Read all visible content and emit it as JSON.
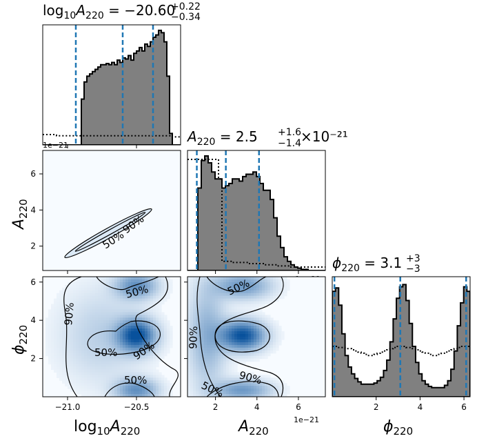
{
  "chart_data": {
    "type": "corner",
    "colors": {
      "hist_fill": "#808080",
      "hist_edge": "#000000",
      "quantile_line": "#1f77b4",
      "prior_line": "#000000",
      "density_cmap_low": "#f7fbff",
      "density_cmap_high": "#08519c",
      "contour": "#000000",
      "frame": "#000000"
    },
    "parameters": [
      {
        "key": "log10A",
        "label": "log₁₀A₂₂₀",
        "title": "log₁₀A₂₂₀ = −20.60⁺⁰·²²₋₀.₃₄"
      },
      {
        "key": "A",
        "label": "A₂₂₀",
        "title": "A₂₂₀ = 2.5⁺¹·⁶₋₁.₄ × 10⁻²¹"
      },
      {
        "key": "phi",
        "label": "ϕ₂₂₀",
        "title": "ϕ₂₂₀ = 3.1⁺³₋₃"
      }
    ],
    "titles": {
      "log10A": {
        "base": "log",
        "sub1": "10",
        "var": "A",
        "sub2": "220",
        "eq": " = −20.60",
        "up": "+0.22",
        "down": "−0.34",
        "tail": ""
      },
      "A": {
        "base": "",
        "sub1": "",
        "var": "A",
        "sub2": "220",
        "eq": " = 2.5",
        "up": "+1.6",
        "down": "−1.4",
        "tail": "×10⁻²¹"
      },
      "phi": {
        "base": "",
        "sub1": "",
        "var": "ϕ",
        "sub2": "220",
        "eq": " = 3.1",
        "up": "+3",
        "down": "−3",
        "tail": ""
      }
    },
    "axis_labels": {
      "log10A": {
        "base": "log",
        "sub1": "10",
        "var": "A",
        "sub2": "220"
      },
      "A": {
        "var": "A",
        "sub2": "220"
      },
      "phi": {
        "var": "ϕ",
        "sub2": "220"
      }
    },
    "ranges": {
      "log10A": [
        -21.18,
        -20.18
      ],
      "A": [
        0.65,
        7.3
      ],
      "phi": [
        0.0,
        6.28
      ]
    },
    "ticks": {
      "log10A": [
        -21.0,
        -20.5
      ],
      "log10A_labels": [
        "−21.0",
        "−20.5"
      ],
      "A": [
        2,
        4,
        6
      ],
      "A_labels": [
        "2",
        "4",
        "6"
      ],
      "phi": [
        2,
        4,
        6
      ],
      "phi_labels": [
        "2",
        "4",
        "6"
      ]
    },
    "offset_text": "1e−21",
    "quantiles": {
      "log10A": [
        -20.94,
        -20.6,
        -20.38
      ],
      "A": [
        1.1,
        2.5,
        4.1
      ],
      "phi": [
        0.1,
        3.1,
        6.1
      ]
    },
    "histograms": {
      "log10A": {
        "edges_start": -21.18,
        "edges_end": -20.18,
        "counts": [
          0,
          0,
          0,
          0,
          0,
          0,
          0,
          0,
          0,
          0,
          0,
          0,
          0,
          0,
          0.4,
          0.55,
          0.6,
          0.62,
          0.64,
          0.66,
          0.68,
          0.7,
          0.7,
          0.71,
          0.7,
          0.72,
          0.7,
          0.74,
          0.72,
          0.76,
          0.75,
          0.78,
          0.74,
          0.8,
          0.82,
          0.85,
          0.82,
          0.88,
          0.86,
          0.9,
          0.94,
          0.96,
          1.0,
          0.98,
          0.9,
          0.6,
          0.1,
          0,
          0,
          0
        ],
        "prior": [
          0.09,
          0.09,
          0.09,
          0.09,
          0.09,
          0.08,
          0.08,
          0.08,
          0.08,
          0.08,
          0.08,
          0.08,
          0.08,
          0.08,
          0.08,
          0.08,
          0.08,
          0.08,
          0.08,
          0.08,
          0.08,
          0.08,
          0.08,
          0.08,
          0.08,
          0.08,
          0.08,
          0.08,
          0.08,
          0.08,
          0.08,
          0.08,
          0.08,
          0.08,
          0.08,
          0.08,
          0.08,
          0.08,
          0.08,
          0.08,
          0.08,
          0.08,
          0.08,
          0.08,
          0.08,
          0.08,
          0.08,
          0.07,
          0.07,
          0.07
        ]
      },
      "A": {
        "edges_start": 0.65,
        "edges_end": 7.3,
        "counts": [
          0,
          0,
          0,
          0.72,
          0.96,
          1.0,
          0.94,
          0.86,
          0.8,
          0.8,
          0.72,
          0.74,
          0.76,
          0.8,
          0.8,
          0.78,
          0.82,
          0.84,
          0.84,
          0.86,
          0.82,
          0.76,
          0.7,
          0.7,
          0.62,
          0.46,
          0.3,
          0.2,
          0.12,
          0.08,
          0.05,
          0.03,
          0.02,
          0.01,
          0.01,
          0,
          0,
          0,
          0,
          0
        ],
        "prior": [
          0.97,
          0.97,
          0.97,
          0.97,
          0.97,
          0.97,
          0.97,
          0.97,
          0.97,
          0.8,
          0.08,
          0.08,
          0.08,
          0.07,
          0.07,
          0.07,
          0.07,
          0.07,
          0.06,
          0.06,
          0.06,
          0.06,
          0.05,
          0.05,
          0.05,
          0.05,
          0.04,
          0.04,
          0.04,
          0.04,
          0.03,
          0.03,
          0.03,
          0.03,
          0.03,
          0.03,
          0.03,
          0.03,
          0.03,
          0.03
        ]
      },
      "phi": {
        "edges_start": 0.0,
        "edges_end": 6.28,
        "counts": [
          0.92,
          0.95,
          0.8,
          0.55,
          0.36,
          0.26,
          0.2,
          0.16,
          0.13,
          0.11,
          0.11,
          0.11,
          0.11,
          0.12,
          0.14,
          0.17,
          0.23,
          0.32,
          0.48,
          0.68,
          0.86,
          0.96,
          0.98,
          0.84,
          0.64,
          0.44,
          0.3,
          0.2,
          0.14,
          0.11,
          0.09,
          0.08,
          0.08,
          0.08,
          0.08,
          0.1,
          0.14,
          0.24,
          0.4,
          0.62,
          0.82,
          0.96,
          0.92
        ],
        "prior": [
          0.44,
          0.44,
          0.43,
          0.43,
          0.42,
          0.42,
          0.41,
          0.4,
          0.39,
          0.38,
          0.37,
          0.36,
          0.36,
          0.37,
          0.38,
          0.39,
          0.4,
          0.41,
          0.42,
          0.43,
          0.44,
          0.44,
          0.44,
          0.43,
          0.43,
          0.42,
          0.41,
          0.4,
          0.39,
          0.38,
          0.37,
          0.36,
          0.36,
          0.37,
          0.38,
          0.39,
          0.4,
          0.41,
          0.42,
          0.43,
          0.44,
          0.44,
          0.44
        ]
      }
    },
    "contour_labels": [
      "50%",
      "90%"
    ],
    "density_blobs": {
      "log10A_phi": [
        {
          "x": -20.5,
          "y": 3.2,
          "sx": 0.09,
          "sy": 0.55,
          "w": 1.0
        },
        {
          "x": -20.5,
          "y": 5.8,
          "sx": 0.1,
          "sy": 0.45,
          "w": 0.55
        },
        {
          "x": -20.5,
          "y": 0.35,
          "sx": 0.1,
          "sy": 0.4,
          "w": 0.55
        },
        {
          "x": -20.75,
          "y": 3.2,
          "sx": 0.2,
          "sy": 1.6,
          "w": 0.18
        }
      ],
      "A_phi": [
        {
          "x": 3.3,
          "y": 3.2,
          "sx": 0.7,
          "sy": 0.5,
          "w": 1.0
        },
        {
          "x": 3.3,
          "y": 5.8,
          "sx": 0.9,
          "sy": 0.45,
          "w": 0.5
        },
        {
          "x": 3.3,
          "y": 0.35,
          "sx": 0.9,
          "sy": 0.35,
          "w": 0.5
        },
        {
          "x": 1.6,
          "y": 3.2,
          "sx": 0.6,
          "sy": 1.8,
          "w": 0.35
        }
      ]
    }
  }
}
